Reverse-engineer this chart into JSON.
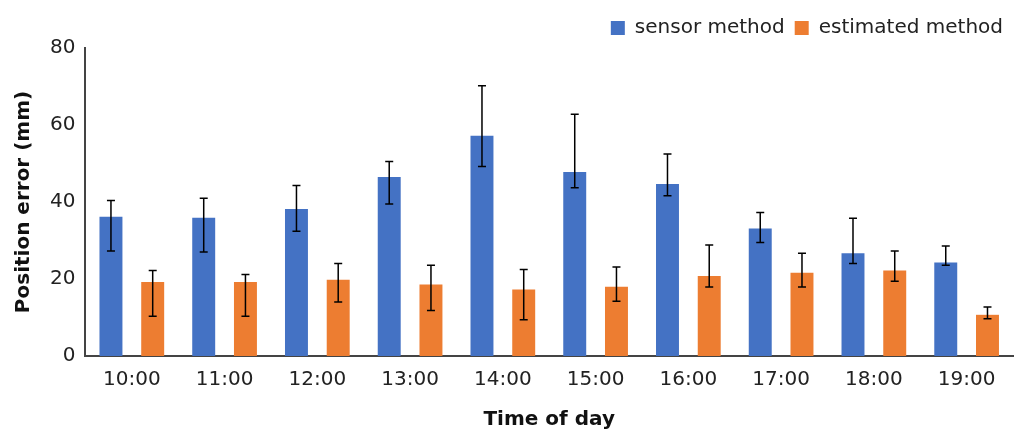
{
  "chart_data": {
    "type": "bar",
    "xlabel": "Time of day",
    "ylabel": "Position error (mm)",
    "categories": [
      "10:00",
      "11:00",
      "12:00",
      "13:00",
      "14:00",
      "15:00",
      "16:00",
      "17:00",
      "18:00",
      "19:00"
    ],
    "series": [
      {
        "name": "sensor method",
        "color": "#4472c4",
        "values": [
          36.2,
          35.9,
          38.2,
          46.5,
          57.2,
          47.8,
          44.7,
          33.1,
          26.7,
          24.3
        ],
        "errors": [
          [
            27.3,
            40.4
          ],
          [
            27.0,
            41.0
          ],
          [
            32.4,
            44.3
          ],
          [
            39.5,
            50.5
          ],
          [
            49.2,
            70.2
          ],
          [
            43.7,
            62.8
          ],
          [
            41.6,
            52.5
          ],
          [
            29.5,
            37.3
          ],
          [
            24.0,
            35.8
          ],
          [
            23.6,
            28.6
          ]
        ]
      },
      {
        "name": "estimated method",
        "color": "#ed7d31",
        "values": [
          19.2,
          19.2,
          19.8,
          18.6,
          17.3,
          18.0,
          20.8,
          21.6,
          22.2,
          10.7
        ],
        "errors": [
          [
            10.3,
            22.2
          ],
          [
            10.3,
            21.2
          ],
          [
            14.0,
            24.0
          ],
          [
            11.8,
            23.6
          ],
          [
            9.4,
            22.5
          ],
          [
            14.2,
            23.1
          ],
          [
            17.9,
            28.8
          ],
          [
            17.9,
            26.7
          ],
          [
            19.4,
            27.3
          ],
          [
            9.7,
            12.7
          ]
        ]
      }
    ],
    "ylim": [
      0,
      80
    ],
    "yticks": [
      0,
      20,
      40,
      60,
      80
    ],
    "grid": false,
    "legend": "top right"
  }
}
